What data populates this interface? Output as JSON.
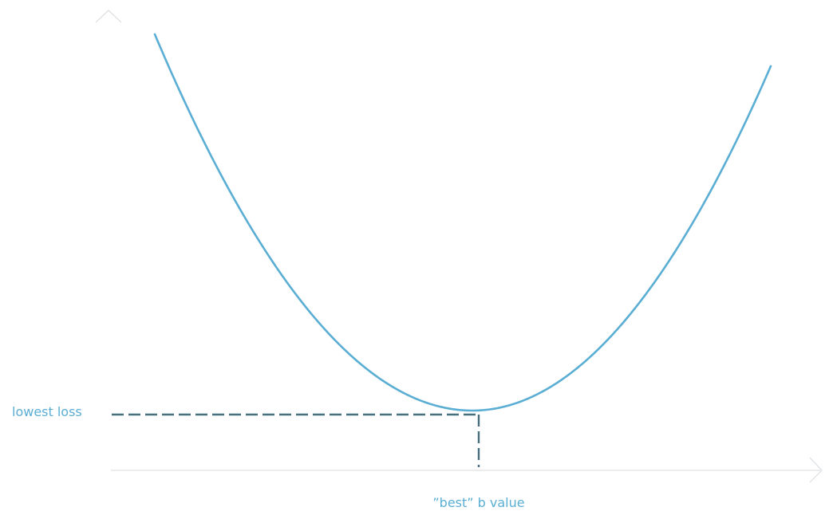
{
  "labels": {
    "y_marker": "lowest loss",
    "x_marker": "”best” b value"
  },
  "colors": {
    "curve": "#5aaed4",
    "guide": "#46707f",
    "axis": "#dde1e4",
    "label": "#5aaed4"
  },
  "diagram": {
    "curve_shape": "parabola",
    "y_axis_arrow": "chevron-up-icon",
    "x_axis_arrow": "chevron-right-icon"
  }
}
